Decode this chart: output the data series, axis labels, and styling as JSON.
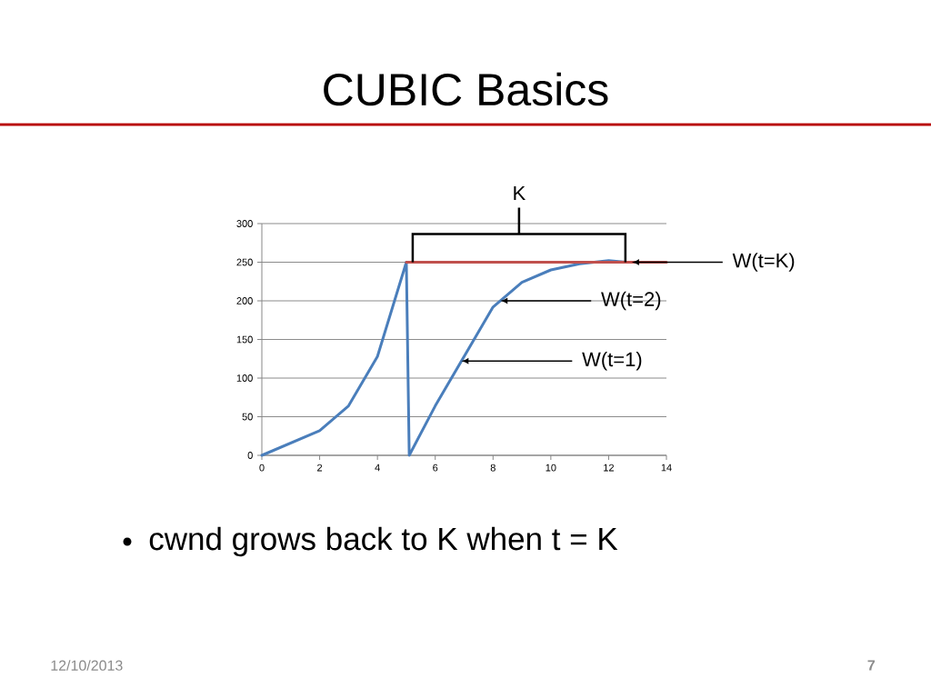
{
  "chart_data": {
    "type": "line",
    "title": "CUBIC Basics",
    "x": [
      0,
      2,
      3,
      4,
      5,
      5.1,
      6,
      7,
      8,
      9,
      10,
      11,
      12,
      12.6
    ],
    "series": [
      {
        "color": "#4a7ebb",
        "values": [
          0,
          32,
          64,
          128,
          250,
          0,
          64,
          128,
          192,
          224,
          240,
          248,
          252,
          250
        ]
      },
      {
        "color": "#c0504d",
        "x": [
          5,
          14
        ],
        "values": [
          250,
          250
        ]
      }
    ],
    "xlim": [
      0,
      14
    ],
    "ylim": [
      0,
      300
    ],
    "xticks": [
      0,
      2,
      4,
      6,
      8,
      10,
      12,
      14
    ],
    "yticks": [
      0,
      50,
      100,
      150,
      200,
      250,
      300
    ],
    "grid": "y",
    "annotations": [
      "K",
      {
        "text": "W(t=K)",
        "x": 12.8,
        "y": 250
      },
      {
        "text": "W(t=2)",
        "x": 8.25,
        "y": 200
      },
      {
        "text": "W(t=1)",
        "x": 6.9,
        "y": 122
      },
      "cwnd grows back to K when t = K",
      "12/10/2013",
      "7"
    ]
  }
}
